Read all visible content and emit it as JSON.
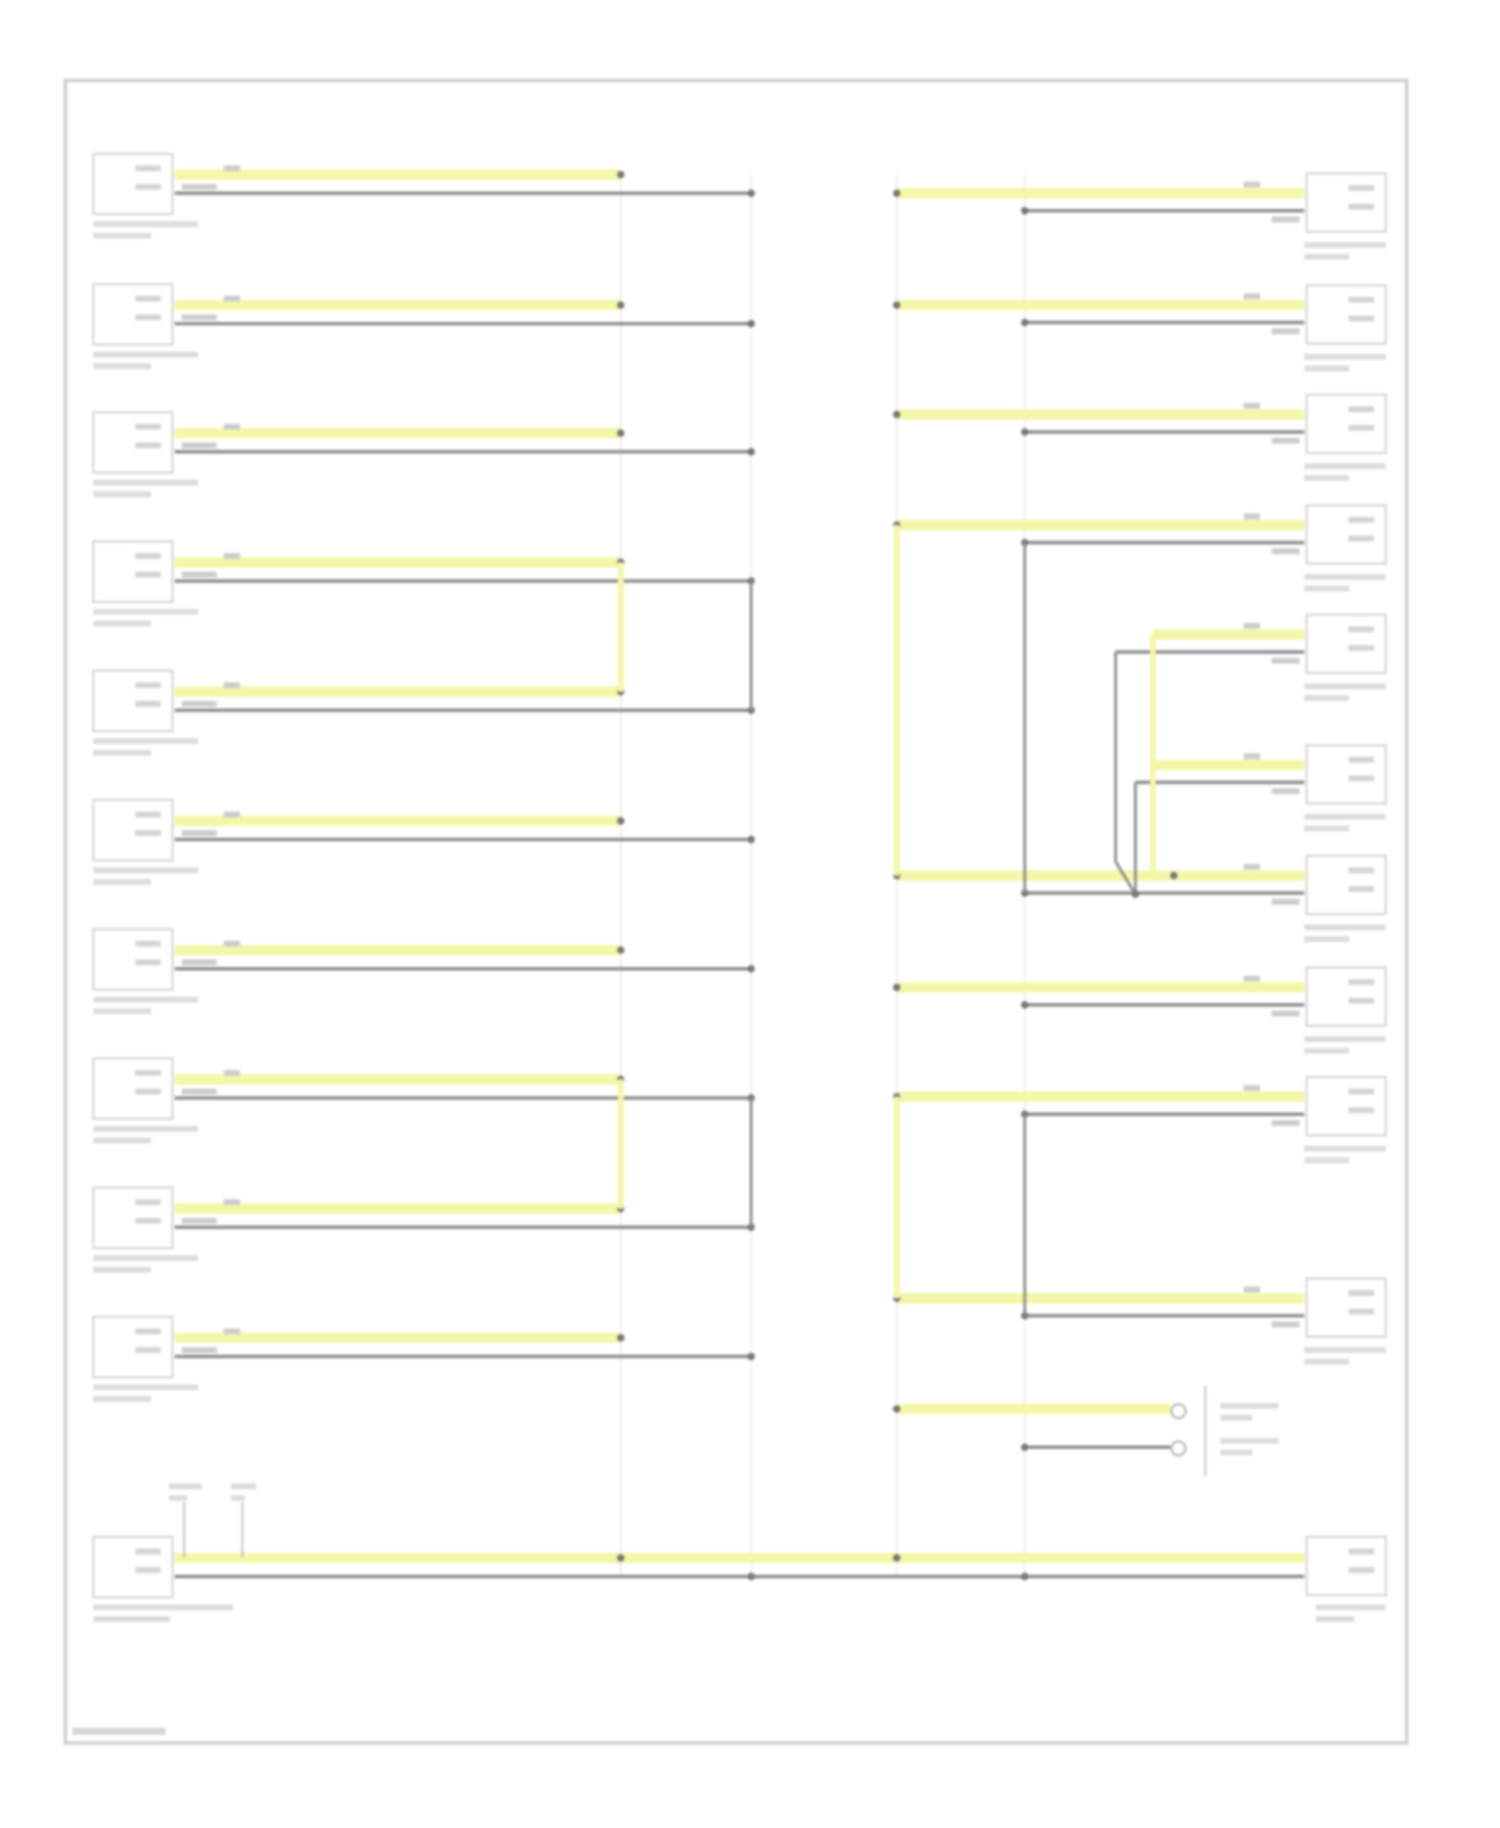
{
  "diagram": {
    "wire_colors": {
      "can_high": "#f4f7a8",
      "can_low": "#8e8e8e",
      "splice_line": "#e4e4e4",
      "frame": "#cfcfcf",
      "connector": "#d8d8d8"
    },
    "left_modules": [
      {},
      {},
      {},
      {},
      {},
      {},
      {},
      {},
      {},
      {}
    ],
    "left_joined_pairs": [
      [
        3,
        4
      ],
      [
        7,
        8
      ]
    ],
    "right_modules": [
      {},
      {},
      {},
      {},
      {},
      {},
      {},
      {},
      {},
      {}
    ],
    "right_joined_groups": [
      [
        3,
        6
      ],
      [
        8,
        9
      ]
    ],
    "bottom_module": {},
    "ground_point": {}
  }
}
